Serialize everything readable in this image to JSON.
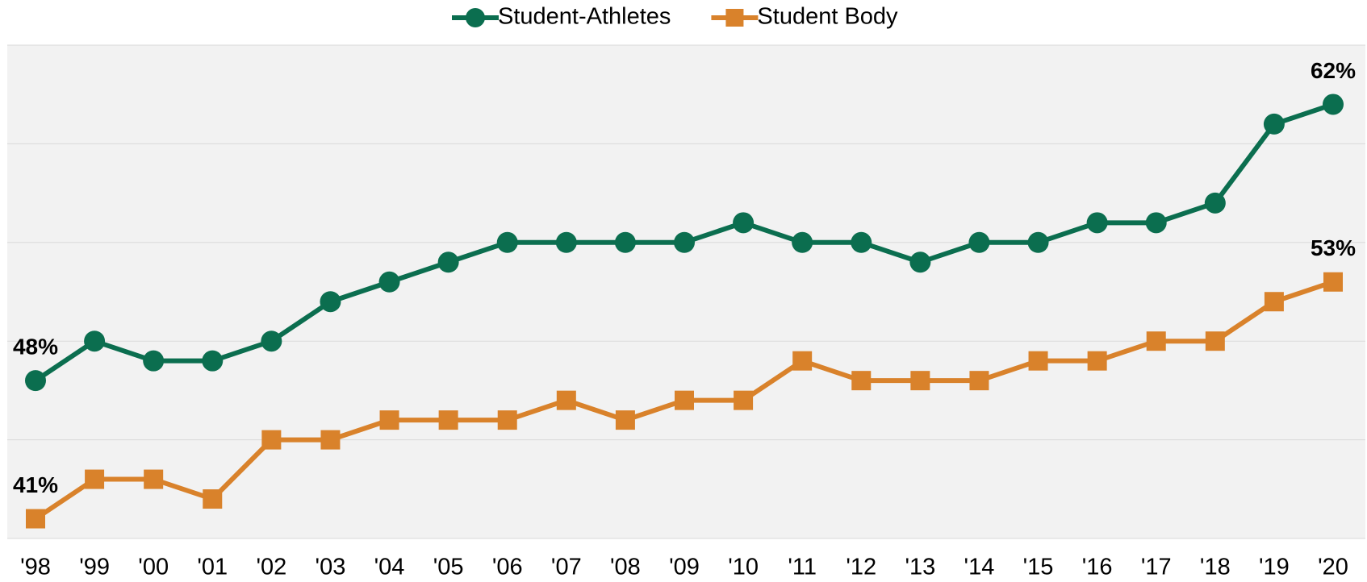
{
  "chart_data": {
    "type": "line",
    "categories": [
      "'98",
      "'99",
      "'00",
      "'01",
      "'02",
      "'03",
      "'04",
      "'05",
      "'06",
      "'07",
      "'08",
      "'09",
      "'10",
      "'11",
      "'12",
      "'13",
      "'14",
      "'15",
      "'16",
      "'17",
      "'18",
      "'19",
      "'20"
    ],
    "series": [
      {
        "name": "Student-Athletes",
        "color": "#0b6e4f",
        "marker": "circle",
        "values": [
          48,
          50,
          49,
          49,
          50,
          52,
          53,
          54,
          55,
          55,
          55,
          55,
          56,
          55,
          55,
          54,
          55,
          55,
          56,
          56,
          57,
          61,
          62
        ],
        "value_labels": [
          "48%",
          null,
          null,
          null,
          null,
          null,
          null,
          null,
          null,
          null,
          null,
          null,
          null,
          null,
          null,
          null,
          null,
          null,
          null,
          null,
          null,
          null,
          "62%"
        ]
      },
      {
        "name": "Student Body",
        "color": "#d9822b",
        "marker": "square",
        "values": [
          41,
          43,
          43,
          42,
          45,
          45,
          46,
          46,
          46,
          47,
          46,
          47,
          47,
          49,
          48,
          48,
          48,
          49,
          49,
          50,
          50,
          52,
          53
        ],
        "value_labels": [
          "41%",
          null,
          null,
          null,
          null,
          null,
          null,
          null,
          null,
          null,
          null,
          null,
          null,
          null,
          null,
          null,
          null,
          null,
          null,
          null,
          null,
          null,
          "53%"
        ]
      }
    ],
    "ylim": [
      40,
      65
    ],
    "yticks": [
      40,
      45,
      50,
      55,
      60,
      65
    ],
    "grid": true
  }
}
